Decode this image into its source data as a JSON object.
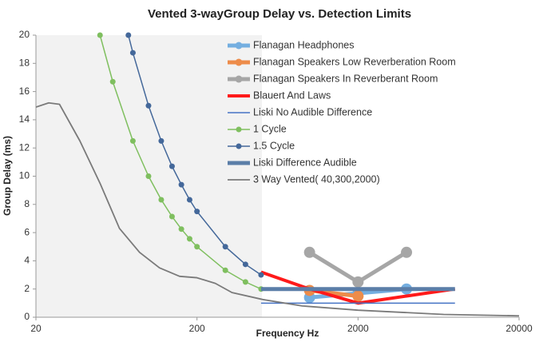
{
  "chart_data": {
    "type": "line",
    "title": "Vented 3-wayGroup Delay vs. Detection Limits",
    "x_label": "Frequency Hz",
    "y_label": "Group Delay (ms)",
    "log_x": true,
    "xlim": [
      20,
      20000
    ],
    "xticks": [
      20,
      200,
      2000,
      20000
    ],
    "ylim": [
      0,
      20
    ],
    "yticks": [
      0,
      2,
      4,
      6,
      8,
      10,
      12,
      14,
      16,
      18,
      20
    ],
    "series": [
      {
        "name": "Flanagan Headphones",
        "color": "#74aee0",
        "width": 5,
        "marker": true,
        "x": [
          1000,
          2000,
          4000
        ],
        "values": [
          1.4,
          1.7,
          2.0
        ]
      },
      {
        "name": "Flanagan Speakers Low Reverberation Room",
        "color": "#ed8c4a",
        "width": 5,
        "marker": true,
        "x": [
          1000,
          2000
        ],
        "values": [
          1.9,
          1.5
        ]
      },
      {
        "name": "Flanagan Speakers In Reverberant Room",
        "color": "#a6a6a6",
        "width": 5,
        "marker": true,
        "x": [
          1000,
          2000,
          4000
        ],
        "values": [
          4.6,
          2.5,
          4.6
        ]
      },
      {
        "name": "Blauert And Laws",
        "color": "#ff1a1a",
        "width": 4,
        "marker": false,
        "x": [
          500,
          1000,
          2000,
          4000,
          8000
        ],
        "values": [
          3.2,
          2.0,
          1.0,
          1.5,
          2.0
        ]
      },
      {
        "name": "Liski No Audible Difference",
        "color": "#4472c4",
        "width": 1.5,
        "marker": false,
        "x": [
          500,
          8000
        ],
        "values": [
          1,
          1
        ]
      },
      {
        "name": "1 Cycle",
        "color": "#7fbf5f",
        "width": 1.5,
        "marker": true,
        "x": [
          50,
          60,
          80,
          100,
          120,
          140,
          160,
          180,
          200,
          300,
          400,
          500
        ],
        "values": [
          20,
          16.7,
          12.5,
          10,
          8.33,
          7.14,
          6.25,
          5.56,
          5,
          3.33,
          2.5,
          2
        ]
      },
      {
        "name": "1.5 Cycle",
        "color": "#44689a",
        "width": 1.5,
        "marker": true,
        "x": [
          75,
          80,
          100,
          120,
          140,
          160,
          180,
          200,
          300,
          400,
          500
        ],
        "values": [
          20,
          18.75,
          15,
          12.5,
          10.7,
          9.4,
          8.33,
          7.5,
          5,
          3.75,
          3
        ]
      },
      {
        "name": "Liski Difference Audible",
        "color": "#5b7ea8",
        "width": 5,
        "marker": false,
        "x": [
          500,
          8000
        ],
        "values": [
          2,
          2
        ]
      },
      {
        "name": "3 Way Vented( 40,300,2000)",
        "color": "#7a7a7a",
        "width": 1.8,
        "marker": false,
        "x": [
          20,
          24,
          28,
          37.5,
          50,
          66,
          88,
          117,
          156,
          200,
          260,
          330,
          515,
          900,
          2000,
          6800,
          20000
        ],
        "values": [
          14.9,
          15.2,
          15.1,
          12.5,
          9.5,
          6.3,
          4.6,
          3.5,
          2.9,
          2.8,
          2.4,
          1.75,
          1.25,
          0.8,
          0.5,
          0.2,
          0.1
        ]
      }
    ]
  }
}
